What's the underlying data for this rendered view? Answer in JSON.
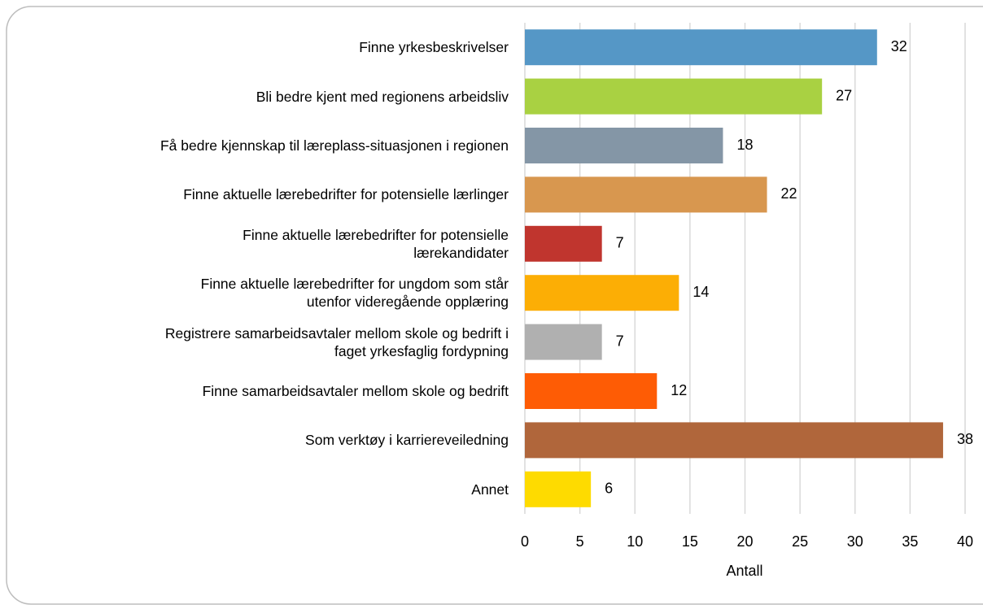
{
  "chart_data": {
    "type": "bar",
    "orientation": "horizontal",
    "categories": [
      "Finne yrkesbeskrivelser",
      "Bli bedre kjent med regionens arbeidsliv",
      "Få bedre kjennskap til læreplass-situasjonen i regionen",
      "Finne aktuelle lærebedrifter for potensielle lærlinger",
      "Finne aktuelle lærebedrifter for potensielle\nlærekandidater",
      "Finne aktuelle lærebedrifter for ungdom som står\nutenfor videregående opplæring",
      "Registrere samarbeidsavtaler mellom skole og bedrift i\nfaget yrkesfaglig fordypning",
      "Finne samarbeidsavtaler mellom skole og bedrift",
      "Som verktøy i karriereveiledning",
      "Annet"
    ],
    "values": [
      32,
      27,
      18,
      22,
      7,
      14,
      7,
      12,
      38,
      6
    ],
    "colors": [
      "#5597c6",
      "#a9d142",
      "#8496a6",
      "#d8974f",
      "#c0352e",
      "#fcae05",
      "#b0b0b0",
      "#fe5c05",
      "#b0663b",
      "#fedb00"
    ],
    "xlabel": "Antall",
    "xlim": [
      0,
      40
    ],
    "xticks": [
      0,
      5,
      10,
      15,
      20,
      25,
      30,
      35,
      40
    ],
    "grid": true
  }
}
